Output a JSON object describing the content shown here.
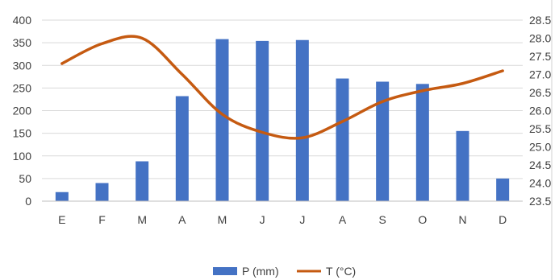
{
  "chart_data": {
    "type": "bar+line",
    "categories": [
      "E",
      "F",
      "M",
      "A",
      "M",
      "J",
      "J",
      "A",
      "S",
      "O",
      "N",
      "D"
    ],
    "series": [
      {
        "name": "P (mm)",
        "type": "bar",
        "axis": "left",
        "color": "#4472C4",
        "values": [
          20,
          40,
          88,
          232,
          358,
          354,
          356,
          271,
          264,
          259,
          155,
          50
        ]
      },
      {
        "name": "T (°C)",
        "type": "line",
        "axis": "right",
        "color": "#C55A11",
        "values": [
          27.3,
          27.85,
          28.0,
          27.0,
          25.9,
          25.4,
          25.25,
          25.7,
          26.25,
          26.55,
          26.75,
          27.1
        ]
      }
    ],
    "y_left": {
      "min": 0,
      "max": 400,
      "ticks": [
        "0",
        "50",
        "100",
        "150",
        "200",
        "250",
        "300",
        "350",
        "400"
      ]
    },
    "y_right": {
      "min": 23.5,
      "max": 28.5,
      "ticks": [
        "23.5",
        "24.0",
        "24.5",
        "25.0",
        "25.5",
        "26.0",
        "26.5",
        "27.0",
        "27.5",
        "28.0",
        "28.5"
      ]
    },
    "grid": true,
    "legend_position": "bottom",
    "legend": [
      {
        "label": "P (mm)",
        "marker": "bar",
        "color": "#4472C4"
      },
      {
        "label": "T (°C)",
        "marker": "line",
        "color": "#C55A11"
      }
    ],
    "title": "",
    "xlabel": "",
    "ylabel": ""
  }
}
